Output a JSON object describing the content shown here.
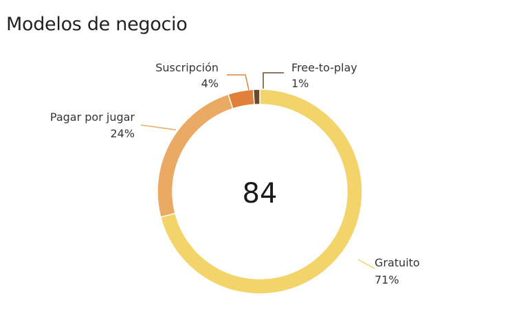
{
  "title": "Modelos de negocio",
  "chart_data": {
    "type": "pie",
    "donut": true,
    "total_label": "84",
    "slices": [
      {
        "name": "Gratuito",
        "value": 71,
        "value_label": "71%",
        "color": "#F2D46B"
      },
      {
        "name": "Pagar por jugar",
        "value": 24,
        "value_label": "24%",
        "color": "#EBAA63"
      },
      {
        "name": "Suscripción",
        "value": 4,
        "value_label": "4%",
        "color": "#E0803A"
      },
      {
        "name": "Free-to-play",
        "value": 1,
        "value_label": "1%",
        "color": "#6B4A2B"
      }
    ]
  }
}
